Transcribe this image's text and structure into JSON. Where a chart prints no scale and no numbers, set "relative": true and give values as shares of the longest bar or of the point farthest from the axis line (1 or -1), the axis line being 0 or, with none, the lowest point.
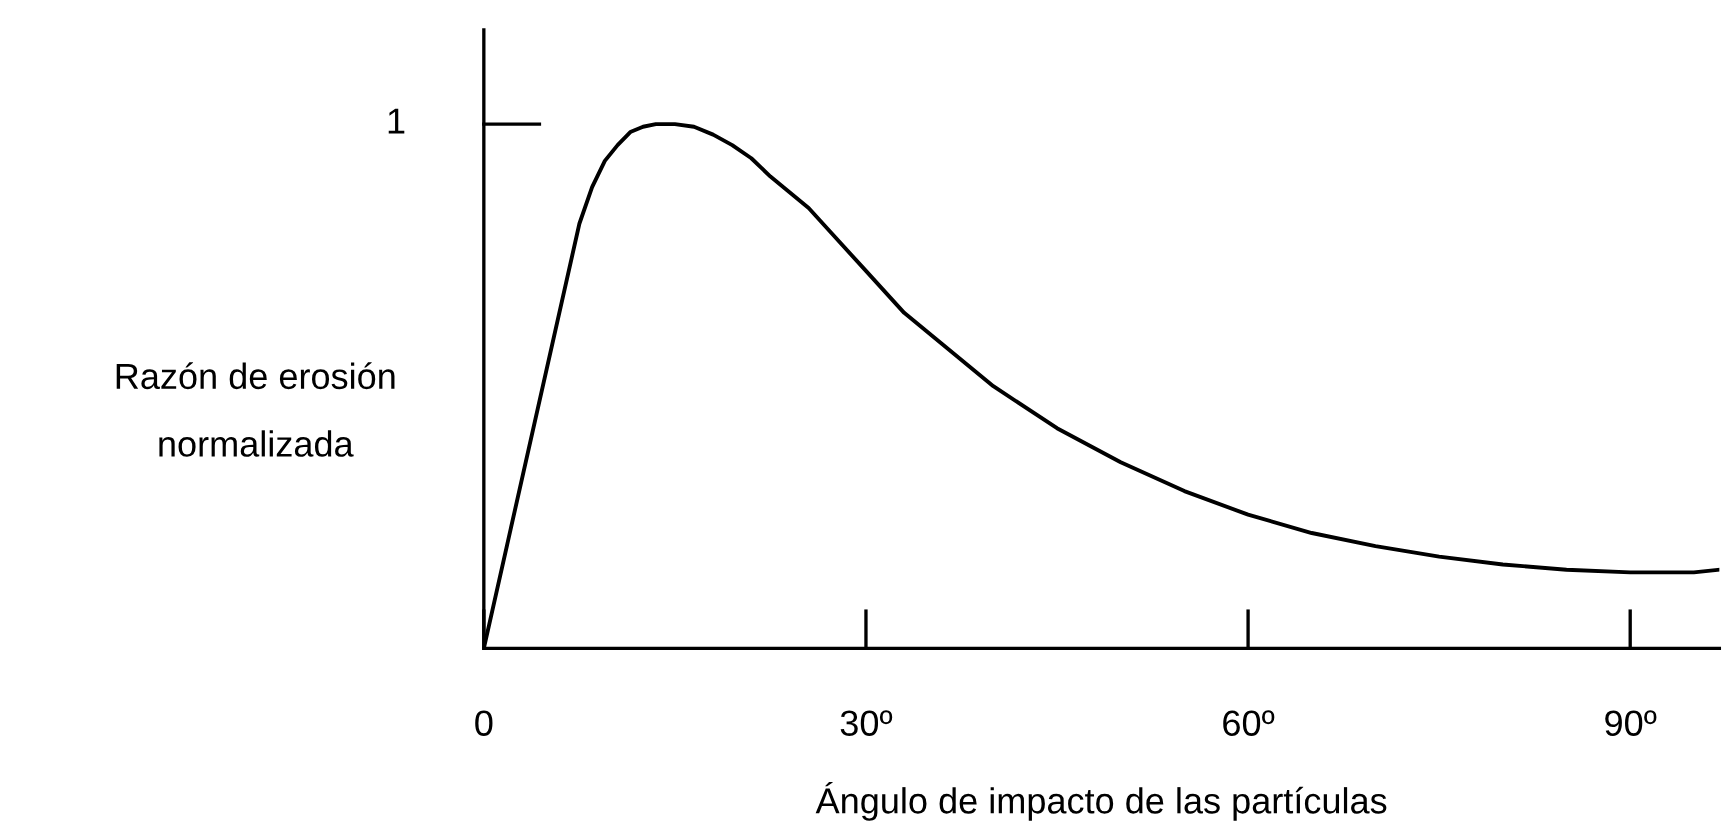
{
  "chart_data": {
    "type": "line",
    "xlabel": "Ángulo de impacto de las partículas",
    "ylabel": "Razón de erosión\nnormalizada",
    "annotations": [
      "1"
    ],
    "relative": true,
    "x": [
      0,
      7.5,
      8.5,
      9.5,
      10.5,
      11.5,
      12.5,
      13.5,
      15,
      16.5,
      18,
      19.5,
      21,
      22.5,
      24,
      25.5,
      27,
      30,
      33,
      36,
      40,
      45,
      50,
      55,
      60,
      65,
      70,
      75,
      80,
      85,
      90,
      95,
      97
    ],
    "series": [
      {
        "color": "#000000",
        "values": [
          0,
          0.81,
          0.88,
          0.93,
          0.96,
          0.985,
          0.995,
          1.0,
          1.0,
          0.995,
          0.98,
          0.96,
          0.935,
          0.9,
          0.87,
          0.84,
          0.8,
          0.72,
          0.64,
          0.58,
          0.5,
          0.42,
          0.355,
          0.3,
          0.255,
          0.22,
          0.195,
          0.175,
          0.16,
          0.15,
          0.145,
          0.145,
          0.15
        ]
      }
    ],
    "xlim": [
      0,
      97
    ],
    "xticks": [
      0,
      {
        "value": 30,
        "label": "30º"
      },
      {
        "value": 60,
        "label": "60º"
      },
      {
        "value": 90,
        "label": "90º"
      }
    ],
    "grid": false,
    "legend": false,
    "marker": "none",
    "line_style": "solid"
  }
}
